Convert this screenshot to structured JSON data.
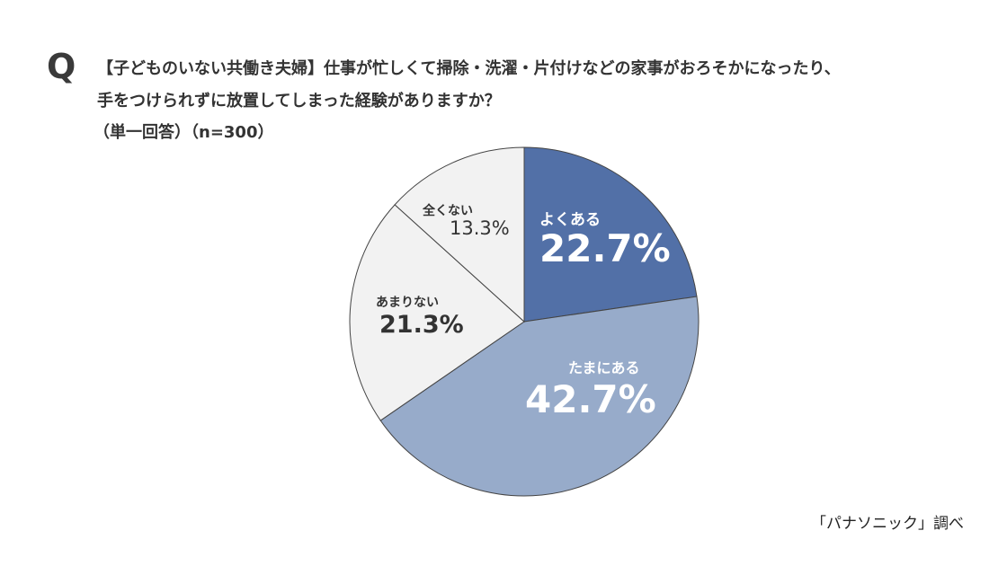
{
  "header": {
    "q_mark": "Q",
    "question_line1": "【子どものいない共働き夫婦】仕事が忙しくて掃除・洗濯・片付けなどの家事がおろそかになったり、",
    "question_line2": "手をつけられずに放置してしまった経験がありますか？",
    "question_note": "（単一回答）（n=300）"
  },
  "source": "「パナソニック」調べ",
  "chart_data": {
    "type": "pie",
    "start": "top",
    "direction": "clockwise",
    "slices": [
      {
        "label": "よくある",
        "value": 22.7,
        "display": "22.7%",
        "color": "#5270a7",
        "text_color": "#ffffff"
      },
      {
        "label": "たまにある",
        "value": 42.7,
        "display": "42.7%",
        "color": "#97abca",
        "text_color": "#ffffff"
      },
      {
        "label": "あまりない",
        "value": 21.3,
        "display": "21.3%",
        "color": "#f2f2f2",
        "text_color": "#333333"
      },
      {
        "label": "全くない",
        "value": 13.3,
        "display": "13.3%",
        "color": "#f2f2f2",
        "text_color": "#333333"
      }
    ]
  }
}
